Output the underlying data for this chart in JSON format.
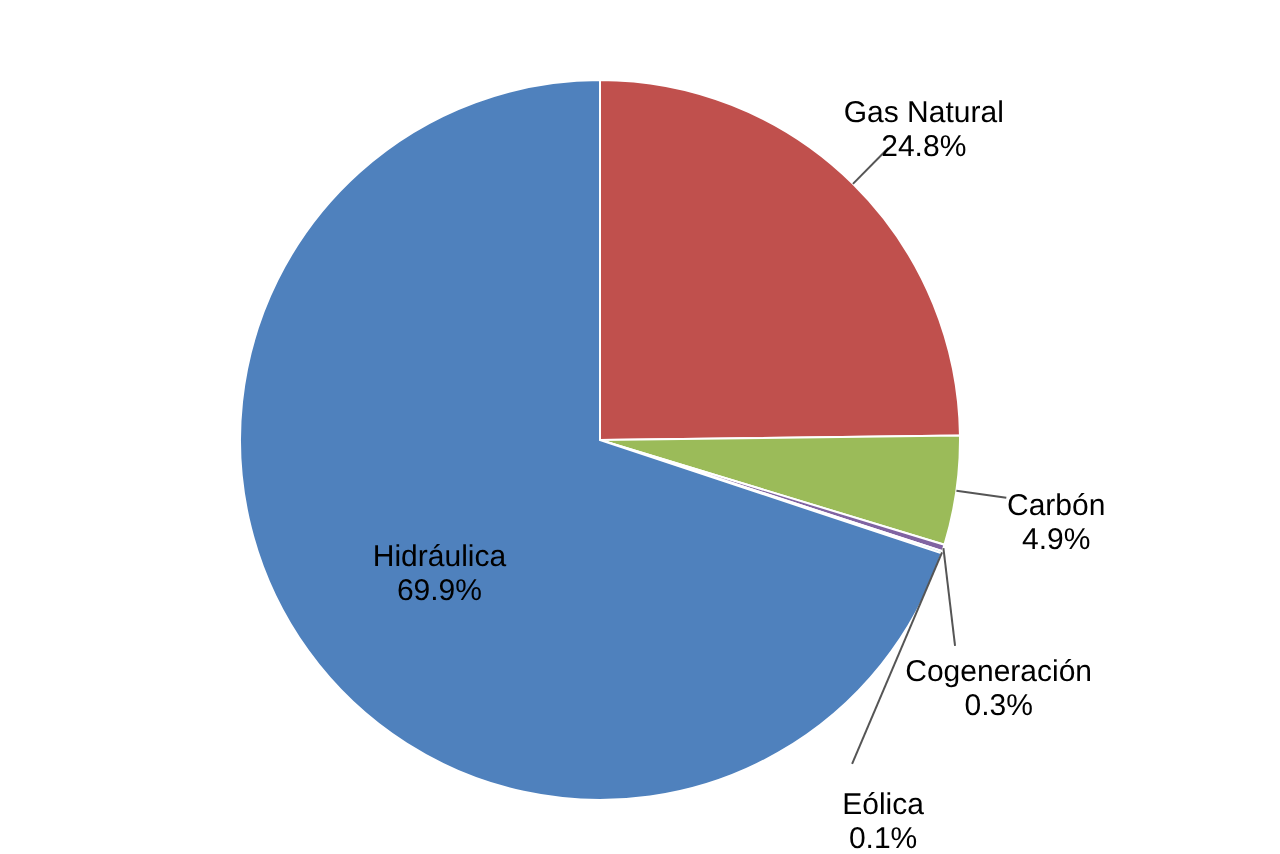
{
  "chart_data": {
    "type": "pie",
    "categories": [
      "Gas Natural",
      "Carbón",
      "Cogeneración",
      "Eólica",
      "Hidráulica"
    ],
    "values": [
      24.8,
      4.9,
      0.3,
      0.1,
      69.9
    ],
    "colors": [
      "#c0504d",
      "#9bbb59",
      "#8064a2",
      "#4bacc6",
      "#4f81bd"
    ],
    "value_labels": [
      "24.8%",
      "4.9%",
      "0.3%",
      "0.1%",
      "69.9%"
    ]
  }
}
